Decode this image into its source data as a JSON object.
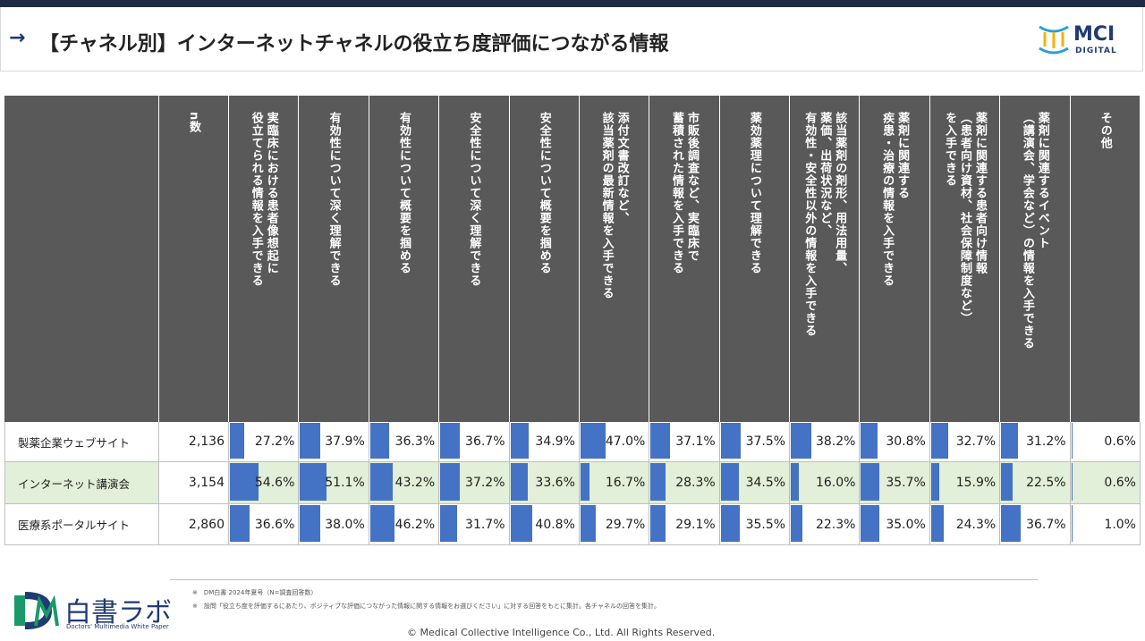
{
  "header": {
    "title": "【チャネル別】インターネットチャネルの役立ち度評価につながる情報",
    "logo": "MCI",
    "logo_sub": "DIGITAL"
  },
  "table": {
    "columns": [
      "n数",
      "実臨床における患者像想起に\n役立てられる情報を入手できる",
      "有効性について深く理解できる",
      "有効性について概要を掴める",
      "安全性について深く理解できる",
      "安全性について概要を掴める",
      "添付文書改訂など、\n該当薬剤の最新情報を入手できる",
      "市販後調査など、実臨床で\n蓄積された情報を入手できる",
      "薬効薬理について理解できる",
      "該当薬剤の剤形、用法用量、\n薬価、出荷状況など、\n有効性・安全性以外の情報を入手できる",
      "薬剤に関連する\n疾患・治療の情報を入手できる",
      "薬剤に関連する患者向け情報\n（患者向け資材、社会保障制度など）\nを入手できる",
      "薬剤に関連するイベント\n（講演会、学会など）の情報を入手できる",
      "その他"
    ],
    "rows": [
      {
        "name": "製薬企業ウェブサイト",
        "n": "2,136",
        "values": [
          27.2,
          37.9,
          36.3,
          36.7,
          34.9,
          47.0,
          37.1,
          37.5,
          38.2,
          30.8,
          32.7,
          31.2,
          0.6
        ],
        "value_labels": [
          "27.2%",
          "37.9%",
          "36.3%",
          "36.7%",
          "34.9%",
          "47.0%",
          "37.1%",
          "37.5%",
          "38.2%",
          "30.8%",
          "32.7%",
          "31.2%",
          "0.6%"
        ]
      },
      {
        "name": "インターネット講演会",
        "n": "3,154",
        "values": [
          54.6,
          51.1,
          43.2,
          37.2,
          33.6,
          16.7,
          28.3,
          34.5,
          16.0,
          35.7,
          15.9,
          22.5,
          0.6
        ],
        "value_labels": [
          "54.6%",
          "51.1%",
          "43.2%",
          "37.2%",
          "33.6%",
          "16.7%",
          "28.3%",
          "34.5%",
          "16.0%",
          "35.7%",
          "15.9%",
          "22.5%",
          "0.6%"
        ]
      },
      {
        "name": "医療系ポータルサイト",
        "n": "2,860",
        "values": [
          36.6,
          38.0,
          46.2,
          31.7,
          40.8,
          29.7,
          29.1,
          35.5,
          22.3,
          35.0,
          24.3,
          36.7,
          1.0
        ],
        "value_labels": [
          "36.6%",
          "38.0%",
          "46.2%",
          "31.7%",
          "40.8%",
          "29.7%",
          "29.1%",
          "35.5%",
          "22.3%",
          "35.0%",
          "24.3%",
          "36.7%",
          "1.0%"
        ]
      }
    ]
  },
  "footer": {
    "logo": "白書ラボ",
    "logo_sub": "Doctors' Multimedia White Paper",
    "notes": [
      "※　DM白書 2024年夏号（N=調査回答数）",
      "※　設問「役立ち度を評価するにあたり、ポジティブな評価につながった情報に関する情報をお選びください」に対する回答をもとに集計。各チャネルの回答を集計。"
    ],
    "copyright": "©  Medical Collective Intelligence Co., Ltd.  All Rights Reserved."
  }
}
